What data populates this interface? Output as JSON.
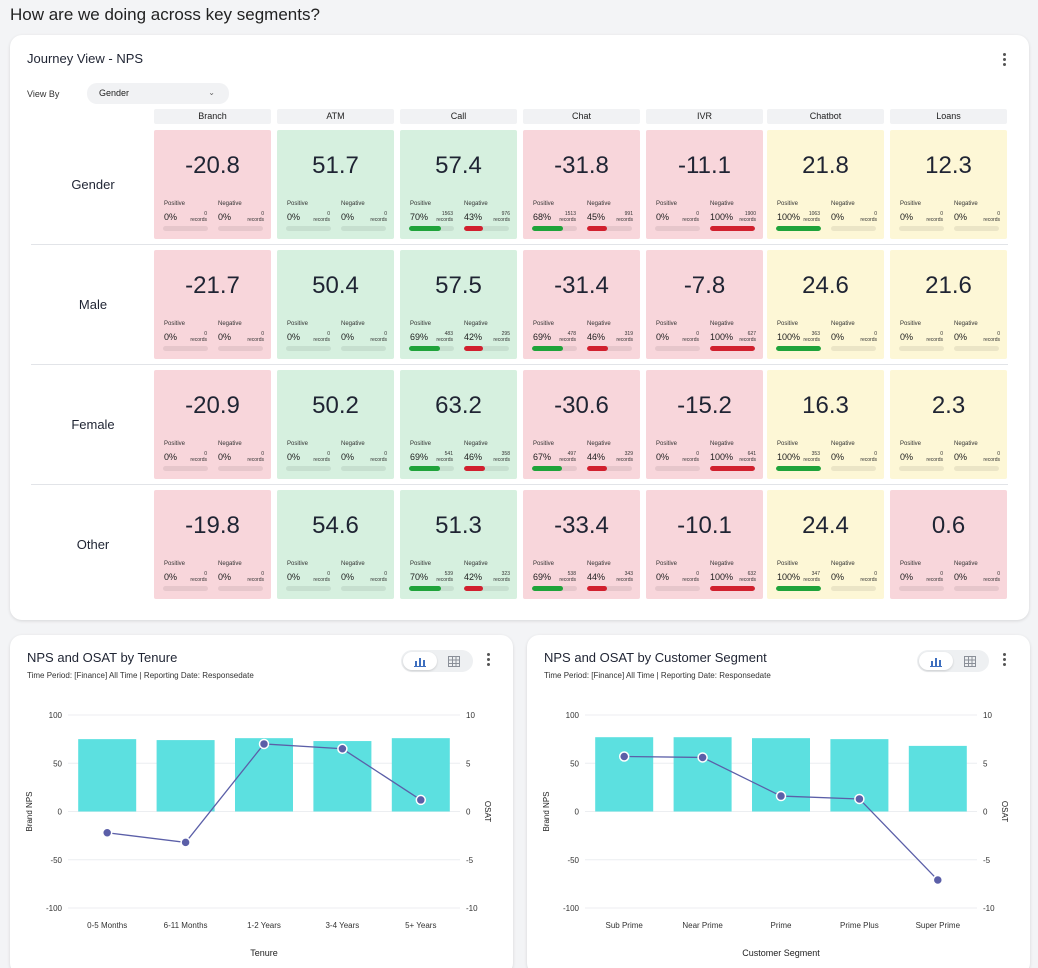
{
  "page_title": "How are we doing across key segments?",
  "journey": {
    "title": "Journey View - NPS",
    "view_by_label": "View By",
    "view_by_value": "Gender",
    "columns": [
      "Branch",
      "ATM",
      "Call",
      "Chat",
      "IVR",
      "Chatbot",
      "Loans"
    ],
    "positive_label": "Positive",
    "negative_label": "Negative",
    "records_label": "records",
    "rows": [
      {
        "label": "Gender",
        "cells": [
          {
            "nps": "-20.8",
            "color": "red",
            "pos_pct": "0%",
            "pos_n": "0",
            "neg_pct": "0%",
            "neg_n": "0",
            "pos_fill": 0,
            "neg_fill": 0
          },
          {
            "nps": "51.7",
            "color": "green",
            "pos_pct": "0%",
            "pos_n": "0",
            "neg_pct": "0%",
            "neg_n": "0",
            "pos_fill": 0,
            "neg_fill": 0
          },
          {
            "nps": "57.4",
            "color": "green",
            "pos_pct": "70%",
            "pos_n": "1563",
            "neg_pct": "43%",
            "neg_n": "976",
            "pos_fill": 0.7,
            "neg_fill": 0.43
          },
          {
            "nps": "-31.8",
            "color": "red",
            "pos_pct": "68%",
            "pos_n": "1513",
            "neg_pct": "45%",
            "neg_n": "991",
            "pos_fill": 0.68,
            "neg_fill": 0.45
          },
          {
            "nps": "-11.1",
            "color": "red",
            "pos_pct": "0%",
            "pos_n": "0",
            "neg_pct": "100%",
            "neg_n": "1900",
            "pos_fill": 0,
            "neg_fill": 1
          },
          {
            "nps": "21.8",
            "color": "yellow",
            "pos_pct": "100%",
            "pos_n": "1063",
            "neg_pct": "0%",
            "neg_n": "0",
            "pos_fill": 1,
            "neg_fill": 0
          },
          {
            "nps": "12.3",
            "color": "yellow",
            "pos_pct": "0%",
            "pos_n": "0",
            "neg_pct": "0%",
            "neg_n": "0",
            "pos_fill": 0,
            "neg_fill": 0
          }
        ]
      },
      {
        "label": "Male",
        "cells": [
          {
            "nps": "-21.7",
            "color": "red",
            "pos_pct": "0%",
            "pos_n": "0",
            "neg_pct": "0%",
            "neg_n": "0",
            "pos_fill": 0,
            "neg_fill": 0
          },
          {
            "nps": "50.4",
            "color": "green",
            "pos_pct": "0%",
            "pos_n": "0",
            "neg_pct": "0%",
            "neg_n": "0",
            "pos_fill": 0,
            "neg_fill": 0
          },
          {
            "nps": "57.5",
            "color": "green",
            "pos_pct": "69%",
            "pos_n": "483",
            "neg_pct": "42%",
            "neg_n": "295",
            "pos_fill": 0.69,
            "neg_fill": 0.42
          },
          {
            "nps": "-31.4",
            "color": "red",
            "pos_pct": "69%",
            "pos_n": "478",
            "neg_pct": "46%",
            "neg_n": "319",
            "pos_fill": 0.69,
            "neg_fill": 0.46
          },
          {
            "nps": "-7.8",
            "color": "red",
            "pos_pct": "0%",
            "pos_n": "0",
            "neg_pct": "100%",
            "neg_n": "627",
            "pos_fill": 0,
            "neg_fill": 1
          },
          {
            "nps": "24.6",
            "color": "yellow",
            "pos_pct": "100%",
            "pos_n": "363",
            "neg_pct": "0%",
            "neg_n": "0",
            "pos_fill": 1,
            "neg_fill": 0
          },
          {
            "nps": "21.6",
            "color": "yellow",
            "pos_pct": "0%",
            "pos_n": "0",
            "neg_pct": "0%",
            "neg_n": "0",
            "pos_fill": 0,
            "neg_fill": 0
          }
        ]
      },
      {
        "label": "Female",
        "cells": [
          {
            "nps": "-20.9",
            "color": "red",
            "pos_pct": "0%",
            "pos_n": "0",
            "neg_pct": "0%",
            "neg_n": "0",
            "pos_fill": 0,
            "neg_fill": 0
          },
          {
            "nps": "50.2",
            "color": "green",
            "pos_pct": "0%",
            "pos_n": "0",
            "neg_pct": "0%",
            "neg_n": "0",
            "pos_fill": 0,
            "neg_fill": 0
          },
          {
            "nps": "63.2",
            "color": "green",
            "pos_pct": "69%",
            "pos_n": "541",
            "neg_pct": "46%",
            "neg_n": "358",
            "pos_fill": 0.69,
            "neg_fill": 0.46
          },
          {
            "nps": "-30.6",
            "color": "red",
            "pos_pct": "67%",
            "pos_n": "497",
            "neg_pct": "44%",
            "neg_n": "329",
            "pos_fill": 0.67,
            "neg_fill": 0.44
          },
          {
            "nps": "-15.2",
            "color": "red",
            "pos_pct": "0%",
            "pos_n": "0",
            "neg_pct": "100%",
            "neg_n": "641",
            "pos_fill": 0,
            "neg_fill": 1
          },
          {
            "nps": "16.3",
            "color": "yellow",
            "pos_pct": "100%",
            "pos_n": "353",
            "neg_pct": "0%",
            "neg_n": "0",
            "pos_fill": 1,
            "neg_fill": 0
          },
          {
            "nps": "2.3",
            "color": "yellow",
            "pos_pct": "0%",
            "pos_n": "0",
            "neg_pct": "0%",
            "neg_n": "0",
            "pos_fill": 0,
            "neg_fill": 0
          }
        ]
      },
      {
        "label": "Other",
        "cells": [
          {
            "nps": "-19.8",
            "color": "red",
            "pos_pct": "0%",
            "pos_n": "0",
            "neg_pct": "0%",
            "neg_n": "0",
            "pos_fill": 0,
            "neg_fill": 0
          },
          {
            "nps": "54.6",
            "color": "green",
            "pos_pct": "0%",
            "pos_n": "0",
            "neg_pct": "0%",
            "neg_n": "0",
            "pos_fill": 0,
            "neg_fill": 0
          },
          {
            "nps": "51.3",
            "color": "green",
            "pos_pct": "70%",
            "pos_n": "539",
            "neg_pct": "42%",
            "neg_n": "323",
            "pos_fill": 0.7,
            "neg_fill": 0.42
          },
          {
            "nps": "-33.4",
            "color": "red",
            "pos_pct": "69%",
            "pos_n": "538",
            "neg_pct": "44%",
            "neg_n": "343",
            "pos_fill": 0.69,
            "neg_fill": 0.44
          },
          {
            "nps": "-10.1",
            "color": "red",
            "pos_pct": "0%",
            "pos_n": "0",
            "neg_pct": "100%",
            "neg_n": "632",
            "pos_fill": 0,
            "neg_fill": 1
          },
          {
            "nps": "24.4",
            "color": "yellow",
            "pos_pct": "100%",
            "pos_n": "347",
            "neg_pct": "0%",
            "neg_n": "0",
            "pos_fill": 1,
            "neg_fill": 0
          },
          {
            "nps": "0.6",
            "color": "red",
            "pos_pct": "0%",
            "pos_n": "0",
            "neg_pct": "0%",
            "neg_n": "0",
            "pos_fill": 0,
            "neg_fill": 0
          }
        ]
      }
    ]
  },
  "colors": {
    "red_cell": "#f8d6db",
    "green_cell": "#d6f0df",
    "yellow_cell": "#fdf7d6",
    "positive_bar": "#1fa33a",
    "negative_bar": "#d1202e",
    "bar_fill": "#5ce0e0",
    "line": "#5b5fa8"
  },
  "chart_toggle_icons": [
    "bar-chart-icon",
    "table-icon"
  ],
  "chart_data": [
    {
      "type": "bar",
      "title": "NPS and OSAT by Tenure",
      "subtitle": "Time Period: [Finance] All Time | Reporting Date: Responsedate",
      "categories": [
        "0-5 Months",
        "6-11 Months",
        "1-2 Years",
        "3-4 Years",
        "5+ Years"
      ],
      "series": [
        {
          "name": "Brand NPS",
          "axis": "left",
          "type": "bar",
          "values": [
            75,
            74,
            76,
            73,
            76
          ]
        },
        {
          "name": "OSAT",
          "axis": "right",
          "type": "line",
          "values": [
            -2.2,
            -3.2,
            7.0,
            6.5,
            1.2
          ]
        }
      ],
      "xlabel": "Tenure",
      "ylabel": "Brand NPS",
      "y2label": "OSAT",
      "ylim": [
        -100,
        100
      ],
      "y2lim": [
        -10,
        10
      ],
      "yticks": [
        "100",
        "50",
        "0",
        "-50",
        "-100"
      ],
      "y2ticks": [
        "10",
        "5",
        "0",
        "-5",
        "-10"
      ],
      "grid": true
    },
    {
      "type": "bar",
      "title": "NPS and OSAT by Customer Segment",
      "subtitle": "Time Period: [Finance] All Time | Reporting Date: Responsedate",
      "categories": [
        "Sub Prime",
        "Near Prime",
        "Prime",
        "Prime Plus",
        "Super Prime"
      ],
      "series": [
        {
          "name": "Brand NPS",
          "axis": "left",
          "type": "bar",
          "values": [
            77,
            77,
            76,
            75,
            68
          ]
        },
        {
          "name": "OSAT",
          "axis": "right",
          "type": "line",
          "values": [
            5.7,
            5.6,
            1.6,
            1.3,
            -7.1
          ]
        }
      ],
      "xlabel": "Customer Segment",
      "ylabel": "Brand NPS",
      "y2label": "OSAT",
      "ylim": [
        -100,
        100
      ],
      "y2lim": [
        -10,
        10
      ],
      "yticks": [
        "100",
        "50",
        "0",
        "-50",
        "-100"
      ],
      "y2ticks": [
        "10",
        "5",
        "0",
        "-5",
        "-10"
      ],
      "grid": true
    }
  ]
}
